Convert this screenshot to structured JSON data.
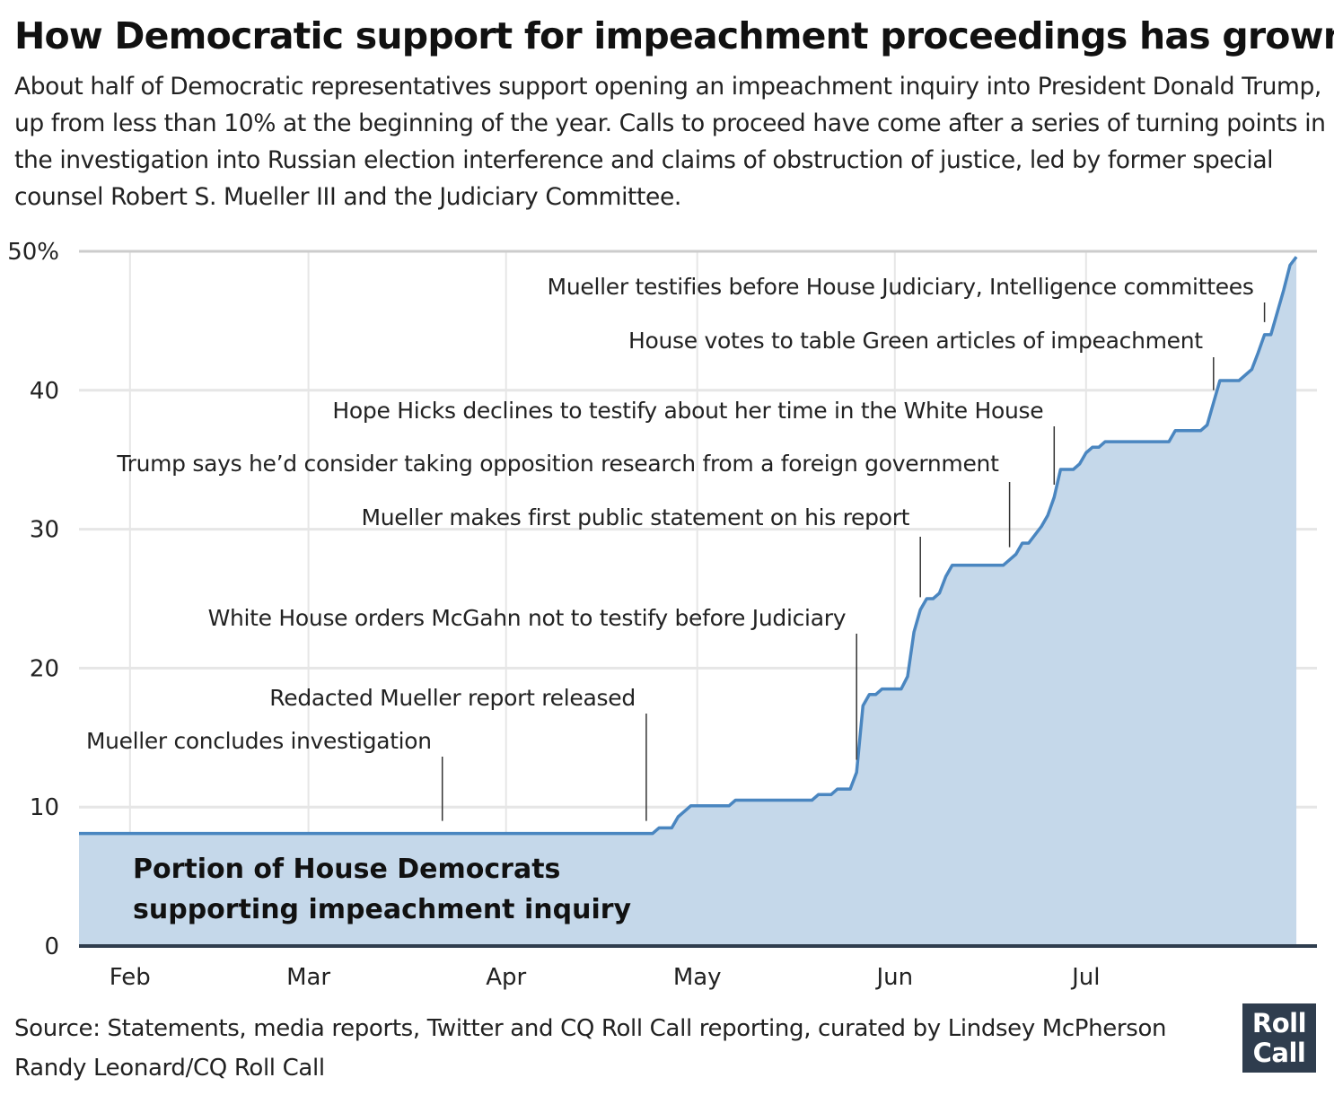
{
  "header": {
    "title": "How Democratic support for impeachment proceedings has grown",
    "subtitle": "About half of Democratic representatives support opening an impeachment inquiry into President Donald Trump, up from less than 10% at the beginning of the year. Calls to proceed have come after a series of turning points in the investigation into Russian election interference and claims of obstruction of justice, led by former special counsel Robert S. Mueller III and the Judiciary Committee."
  },
  "footer": {
    "source": "Source: Statements, media reports, Twitter and CQ Roll Call reporting, curated by Lindsey McPherson",
    "credit": "Randy Leonard/CQ Roll Call",
    "logo_line1": "Roll",
    "logo_line2": "Call"
  },
  "chart_data": {
    "type": "area",
    "title": "How Democratic support for impeachment proceedings has grown",
    "series_label_lines": [
      "Portion of House Democrats",
      "supporting impeachment inquiry"
    ],
    "xlabel": "",
    "ylabel": "",
    "x_range": [
      "2019-01-24",
      "2019-07-30"
    ],
    "ylim": [
      0,
      50
    ],
    "y_ticks": [
      {
        "value": 0,
        "label": "0"
      },
      {
        "value": 10,
        "label": "10"
      },
      {
        "value": 20,
        "label": "20"
      },
      {
        "value": 30,
        "label": "30"
      },
      {
        "value": 40,
        "label": "40"
      },
      {
        "value": 50,
        "label": "50%"
      }
    ],
    "x_ticks": [
      {
        "date": "2019-02-01",
        "label": "Feb"
      },
      {
        "date": "2019-03-01",
        "label": "Mar"
      },
      {
        "date": "2019-04-01",
        "label": "Apr"
      },
      {
        "date": "2019-05-01",
        "label": "May"
      },
      {
        "date": "2019-06-01",
        "label": "Jun"
      },
      {
        "date": "2019-07-01",
        "label": "Jul"
      }
    ],
    "grid": true,
    "colors": {
      "line": "#4a86c0",
      "fill": "#c5d8ea",
      "grid": "#e6e6e6",
      "baseline": "#2f3d4e",
      "top_grid": "#cccccc"
    },
    "series": [
      {
        "points": [
          {
            "date": "2019-01-24",
            "value": 8.1
          },
          {
            "date": "2019-04-24",
            "value": 8.1
          },
          {
            "date": "2019-04-25",
            "value": 8.5
          },
          {
            "date": "2019-04-27",
            "value": 8.5
          },
          {
            "date": "2019-04-28",
            "value": 9.3
          },
          {
            "date": "2019-04-30",
            "value": 10.1
          },
          {
            "date": "2019-05-06",
            "value": 10.1
          },
          {
            "date": "2019-05-07",
            "value": 10.5
          },
          {
            "date": "2019-05-19",
            "value": 10.5
          },
          {
            "date": "2019-05-20",
            "value": 10.9
          },
          {
            "date": "2019-05-22",
            "value": 10.9
          },
          {
            "date": "2019-05-23",
            "value": 11.3
          },
          {
            "date": "2019-05-25",
            "value": 11.3
          },
          {
            "date": "2019-05-26",
            "value": 12.5
          },
          {
            "date": "2019-05-27",
            "value": 17.3
          },
          {
            "date": "2019-05-28",
            "value": 18.1
          },
          {
            "date": "2019-05-29",
            "value": 18.1
          },
          {
            "date": "2019-05-30",
            "value": 18.5
          },
          {
            "date": "2019-06-02",
            "value": 18.5
          },
          {
            "date": "2019-06-03",
            "value": 19.4
          },
          {
            "date": "2019-06-04",
            "value": 22.6
          },
          {
            "date": "2019-06-05",
            "value": 24.2
          },
          {
            "date": "2019-06-06",
            "value": 25.0
          },
          {
            "date": "2019-06-07",
            "value": 25.0
          },
          {
            "date": "2019-06-08",
            "value": 25.4
          },
          {
            "date": "2019-06-09",
            "value": 26.6
          },
          {
            "date": "2019-06-10",
            "value": 27.4
          },
          {
            "date": "2019-06-18",
            "value": 27.4
          },
          {
            "date": "2019-06-19",
            "value": 27.8
          },
          {
            "date": "2019-06-20",
            "value": 28.2
          },
          {
            "date": "2019-06-21",
            "value": 29.0
          },
          {
            "date": "2019-06-22",
            "value": 29.0
          },
          {
            "date": "2019-06-24",
            "value": 30.2
          },
          {
            "date": "2019-06-25",
            "value": 31.0
          },
          {
            "date": "2019-06-26",
            "value": 32.3
          },
          {
            "date": "2019-06-27",
            "value": 34.3
          },
          {
            "date": "2019-06-29",
            "value": 34.3
          },
          {
            "date": "2019-06-30",
            "value": 34.7
          },
          {
            "date": "2019-07-01",
            "value": 35.5
          },
          {
            "date": "2019-07-02",
            "value": 35.9
          },
          {
            "date": "2019-07-03",
            "value": 35.9
          },
          {
            "date": "2019-07-04",
            "value": 36.3
          },
          {
            "date": "2019-07-14",
            "value": 36.3
          },
          {
            "date": "2019-07-15",
            "value": 37.1
          },
          {
            "date": "2019-07-19",
            "value": 37.1
          },
          {
            "date": "2019-07-20",
            "value": 37.5
          },
          {
            "date": "2019-07-21",
            "value": 39.1
          },
          {
            "date": "2019-07-22",
            "value": 40.7
          },
          {
            "date": "2019-07-25",
            "value": 40.7
          },
          {
            "date": "2019-07-27",
            "value": 41.5
          },
          {
            "date": "2019-07-28",
            "value": 42.7
          },
          {
            "date": "2019-07-29",
            "value": 44.0
          },
          {
            "date": "2019-07-30",
            "value": 44.0
          },
          {
            "date": "2019-07-31",
            "value": 45.6
          },
          {
            "date": "2019-08-01",
            "value": 47.2
          },
          {
            "date": "2019-08-02",
            "value": 49.0
          },
          {
            "date": "2019-08-03",
            "value": 49.6
          }
        ]
      }
    ],
    "annotations": [
      {
        "label": "Mueller concludes investigation",
        "date": "2019-03-22"
      },
      {
        "label": "Redacted Mueller report released",
        "date": "2019-04-23"
      },
      {
        "label": "White House orders McGahn not to testify before Judiciary",
        "date": "2019-05-26"
      },
      {
        "label": "Mueller makes first public statement on his report",
        "date": "2019-06-05"
      },
      {
        "label": "Trump says he’d consider taking opposition research from a foreign government",
        "date": "2019-06-19"
      },
      {
        "label": "Hope Hicks declines to testify about her time in the White House",
        "date": "2019-06-26"
      },
      {
        "label": "House votes to table Green articles of impeachment",
        "date": "2019-07-21"
      },
      {
        "label": "Mueller testifies before House Judiciary, Intelligence committees",
        "date": "2019-07-29"
      }
    ]
  }
}
